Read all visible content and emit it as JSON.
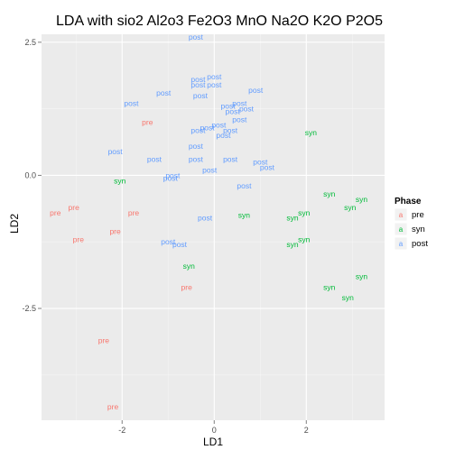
{
  "chart_data": {
    "type": "scatter",
    "title": "LDA with sio2 Al2o3 Fe2O3 MnO Na2O K2O P2O5",
    "xlabel": "LD1",
    "ylabel": "LD2",
    "xlim": [
      -3.75,
      3.7
    ],
    "ylim": [
      -4.6,
      2.65
    ],
    "xticks": [
      -2,
      0,
      2
    ],
    "xtick_labels": [
      "-2",
      "0",
      "2"
    ],
    "yticks": [
      2.5,
      0.0,
      -2.5
    ],
    "ytick_labels": [
      "2.5",
      "0.0",
      "-2.5"
    ],
    "grid": true,
    "legend": {
      "title": "Phase",
      "position": "right",
      "key_glyph": "a",
      "entries": [
        "pre",
        "syn",
        "post"
      ]
    },
    "colors": {
      "pre": "#F8766D",
      "syn": "#00BA38",
      "post": "#619CFF",
      "panel": "#EBEBEB",
      "grid": "#FFFFFF"
    },
    "series": [
      {
        "name": "pre",
        "points": [
          {
            "x": -1.45,
            "y": 1.0
          },
          {
            "x": -3.05,
            "y": -0.6
          },
          {
            "x": -3.45,
            "y": -0.7
          },
          {
            "x": -1.75,
            "y": -0.7
          },
          {
            "x": -2.95,
            "y": -1.2
          },
          {
            "x": -2.15,
            "y": -1.05
          },
          {
            "x": -0.6,
            "y": -2.1
          },
          {
            "x": -2.4,
            "y": -3.1
          },
          {
            "x": -2.2,
            "y": -4.35
          }
        ]
      },
      {
        "name": "syn",
        "points": [
          {
            "x": -2.05,
            "y": -0.1
          },
          {
            "x": 2.1,
            "y": 0.8
          },
          {
            "x": 2.5,
            "y": -0.35
          },
          {
            "x": 3.2,
            "y": -0.45
          },
          {
            "x": 2.95,
            "y": -0.6
          },
          {
            "x": 0.65,
            "y": -0.75
          },
          {
            "x": 1.95,
            "y": -0.7
          },
          {
            "x": 1.7,
            "y": -0.8
          },
          {
            "x": 1.95,
            "y": -1.2
          },
          {
            "x": 1.7,
            "y": -1.3
          },
          {
            "x": -0.55,
            "y": -1.7
          },
          {
            "x": 3.2,
            "y": -1.9
          },
          {
            "x": 2.5,
            "y": -2.1
          },
          {
            "x": 2.9,
            "y": -2.3
          }
        ]
      },
      {
        "name": "post",
        "points": [
          {
            "x": -0.4,
            "y": 2.6
          },
          {
            "x": -0.35,
            "y": 1.8
          },
          {
            "x": 0.0,
            "y": 1.85
          },
          {
            "x": -0.35,
            "y": 1.7
          },
          {
            "x": 0.0,
            "y": 1.7
          },
          {
            "x": 0.9,
            "y": 1.6
          },
          {
            "x": -1.1,
            "y": 1.55
          },
          {
            "x": -0.3,
            "y": 1.5
          },
          {
            "x": -1.8,
            "y": 1.35
          },
          {
            "x": 0.55,
            "y": 1.35
          },
          {
            "x": 0.3,
            "y": 1.3
          },
          {
            "x": 0.7,
            "y": 1.25
          },
          {
            "x": 0.4,
            "y": 1.2
          },
          {
            "x": 0.55,
            "y": 1.05
          },
          {
            "x": 0.1,
            "y": 0.95
          },
          {
            "x": -0.15,
            "y": 0.9
          },
          {
            "x": -0.35,
            "y": 0.85
          },
          {
            "x": 0.35,
            "y": 0.85
          },
          {
            "x": 0.2,
            "y": 0.75
          },
          {
            "x": -0.4,
            "y": 0.55
          },
          {
            "x": -2.15,
            "y": 0.45
          },
          {
            "x": -1.3,
            "y": 0.3
          },
          {
            "x": -0.4,
            "y": 0.3
          },
          {
            "x": 0.35,
            "y": 0.3
          },
          {
            "x": 1.0,
            "y": 0.25
          },
          {
            "x": 1.15,
            "y": 0.15
          },
          {
            "x": -0.9,
            "y": 0.0
          },
          {
            "x": 0.65,
            "y": -0.2
          },
          {
            "x": -0.95,
            "y": -0.05
          },
          {
            "x": -0.1,
            "y": 0.1
          },
          {
            "x": -0.2,
            "y": -0.8
          },
          {
            "x": -1.0,
            "y": -1.25
          },
          {
            "x": -0.75,
            "y": -1.3
          }
        ]
      }
    ]
  }
}
